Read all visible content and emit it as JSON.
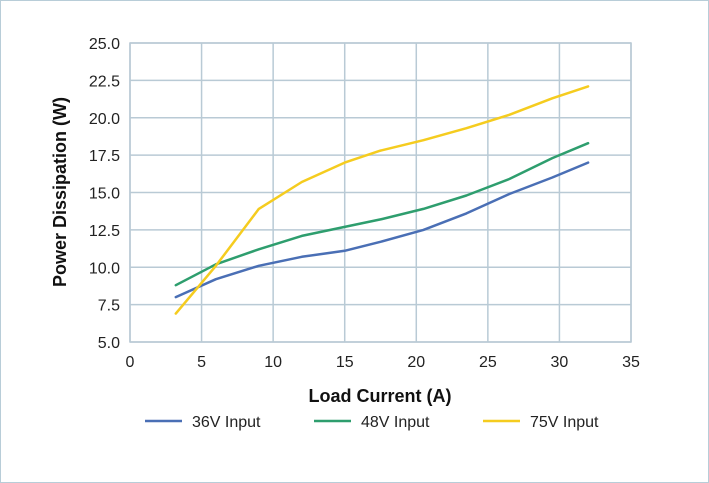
{
  "chart_data": {
    "type": "line",
    "xlabel": "Load Current (A)",
    "ylabel": "Power Dissipation (W)",
    "xlim": [
      0,
      35
    ],
    "ylim": [
      5.0,
      25.0
    ],
    "xticks": [
      0,
      5,
      10,
      15,
      20,
      25,
      30,
      35
    ],
    "xtick_labels": [
      "0",
      "5",
      "10",
      "15",
      "20",
      "25",
      "30",
      "35"
    ],
    "yticks": [
      5.0,
      7.5,
      10.0,
      12.5,
      15.0,
      17.5,
      20.0,
      22.5,
      25.0
    ],
    "ytick_labels": [
      "5.0",
      "7.5",
      "10.0",
      "12.5",
      "15.0",
      "17.5",
      "20.0",
      "22.5",
      "25.0"
    ],
    "grid": true,
    "legend_position": "bottom",
    "series": [
      {
        "name": "36V Input",
        "color": "#4a6fb5",
        "x": [
          3.2,
          6,
          9,
          12,
          15,
          17.5,
          20.5,
          23.5,
          26.5,
          29.5,
          32
        ],
        "y": [
          8.0,
          9.2,
          10.1,
          10.7,
          11.1,
          11.7,
          12.5,
          13.6,
          14.9,
          16.0,
          17.0
        ]
      },
      {
        "name": "48V Input",
        "color": "#2e9e6e",
        "x": [
          3.2,
          6,
          9,
          12,
          15,
          17.5,
          20.5,
          23.5,
          26.5,
          29.5,
          32
        ],
        "y": [
          8.8,
          10.2,
          11.2,
          12.1,
          12.7,
          13.2,
          13.9,
          14.8,
          15.9,
          17.3,
          18.3
        ]
      },
      {
        "name": "75V Input",
        "color": "#f5cc1f",
        "x": [
          3.2,
          6,
          9,
          12,
          15,
          17.5,
          20.5,
          23.5,
          26.5,
          29.5,
          32
        ],
        "y": [
          6.9,
          10.1,
          13.9,
          15.7,
          17.0,
          17.8,
          18.5,
          19.3,
          20.2,
          21.3,
          22.1
        ]
      }
    ]
  }
}
